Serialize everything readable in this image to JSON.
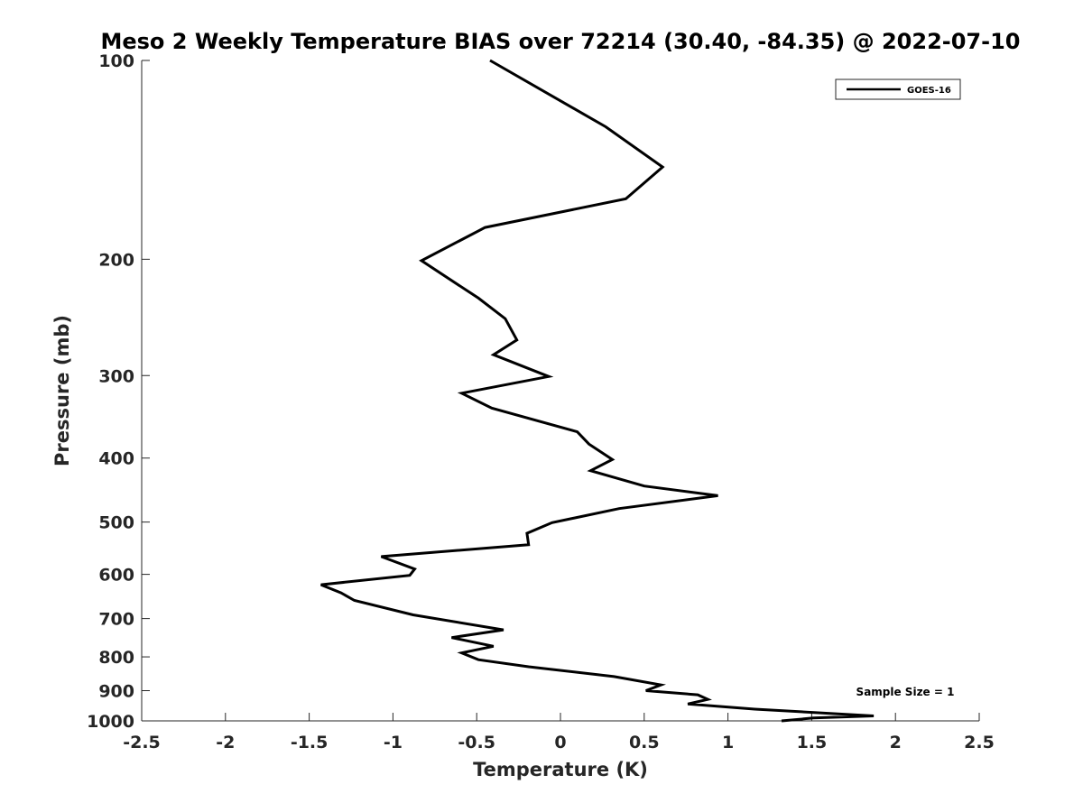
{
  "chart_data": {
    "type": "line",
    "title": "Meso 2 Weekly Temperature BIAS over 72214 (30.40, -84.35) @ 2022-07-10",
    "xlabel": "Temperature (K)",
    "ylabel": "Pressure (mb)",
    "xlim": [
      -2.5,
      2.5
    ],
    "ylim": [
      100,
      1000
    ],
    "y_scale": "log",
    "y_reversed": true,
    "grid": false,
    "legend_position": "top-right",
    "x_ticks": [
      -2.5,
      -2,
      -1.5,
      -1,
      -0.5,
      0,
      0.5,
      1,
      1.5,
      2,
      2.5
    ],
    "x_tick_labels": [
      "-2.5",
      "-2",
      "-1.5",
      "-1",
      "-0.5",
      "0",
      "0.5",
      "1",
      "1.5",
      "2",
      "2.5"
    ],
    "y_ticks": [
      100,
      200,
      300,
      400,
      500,
      600,
      700,
      800,
      900,
      1000
    ],
    "y_tick_labels": [
      "100",
      "200",
      "300",
      "400",
      "500",
      "600",
      "700",
      "800",
      "900",
      "1000"
    ],
    "series": [
      {
        "name": "GOES-16",
        "color": "#000000",
        "points": [
          {
            "x": -0.42,
            "y": 100
          },
          {
            "x": 0.27,
            "y": 126
          },
          {
            "x": 0.61,
            "y": 145
          },
          {
            "x": 0.39,
            "y": 162
          },
          {
            "x": -0.45,
            "y": 179
          },
          {
            "x": -0.83,
            "y": 201
          },
          {
            "x": -0.49,
            "y": 229
          },
          {
            "x": -0.33,
            "y": 246
          },
          {
            "x": -0.26,
            "y": 265
          },
          {
            "x": -0.4,
            "y": 279
          },
          {
            "x": -0.07,
            "y": 301
          },
          {
            "x": -0.59,
            "y": 319
          },
          {
            "x": -0.41,
            "y": 336
          },
          {
            "x": 0.1,
            "y": 365
          },
          {
            "x": 0.17,
            "y": 381
          },
          {
            "x": 0.31,
            "y": 402
          },
          {
            "x": 0.18,
            "y": 418
          },
          {
            "x": 0.5,
            "y": 441
          },
          {
            "x": 0.94,
            "y": 456
          },
          {
            "x": 0.35,
            "y": 477
          },
          {
            "x": -0.05,
            "y": 501
          },
          {
            "x": -0.2,
            "y": 520
          },
          {
            "x": -0.19,
            "y": 541
          },
          {
            "x": -1.07,
            "y": 564
          },
          {
            "x": -0.87,
            "y": 589
          },
          {
            "x": -0.9,
            "y": 602
          },
          {
            "x": -1.43,
            "y": 622
          },
          {
            "x": -1.31,
            "y": 640
          },
          {
            "x": -1.23,
            "y": 657
          },
          {
            "x": -0.88,
            "y": 691
          },
          {
            "x": -0.34,
            "y": 728
          },
          {
            "x": -0.65,
            "y": 748
          },
          {
            "x": -0.4,
            "y": 771
          },
          {
            "x": -0.59,
            "y": 789
          },
          {
            "x": -0.49,
            "y": 808
          },
          {
            "x": -0.19,
            "y": 828
          },
          {
            "x": 0.32,
            "y": 857
          },
          {
            "x": 0.6,
            "y": 882
          },
          {
            "x": 0.51,
            "y": 900
          },
          {
            "x": 0.82,
            "y": 913
          },
          {
            "x": 0.88,
            "y": 928
          },
          {
            "x": 0.76,
            "y": 943
          },
          {
            "x": 1.16,
            "y": 960
          },
          {
            "x": 1.87,
            "y": 983
          },
          {
            "x": 1.51,
            "y": 990
          },
          {
            "x": 1.32,
            "y": 1000
          }
        ]
      }
    ],
    "annotations": [
      {
        "text": "Sample Size = 1"
      }
    ]
  }
}
